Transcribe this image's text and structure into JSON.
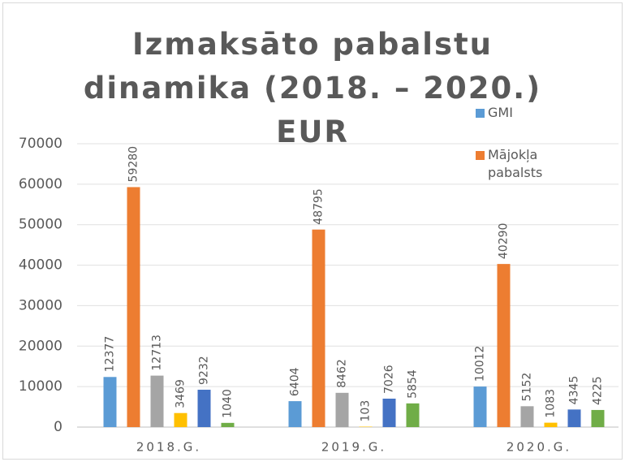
{
  "chart_data": {
    "type": "bar",
    "title": "Izmaksāto pabalstu dinamika (2018. – 2020.) EUR",
    "categories": [
      "2018.G.",
      "2019.G.",
      "2020.G."
    ],
    "series": [
      {
        "name": "GMI",
        "color": "#5b9bd5",
        "values": [
          12377,
          6404,
          10012
        ]
      },
      {
        "name": "Mājokļa pabalsts",
        "color": "#ed7d31",
        "values": [
          59280,
          48795,
          40290
        ]
      },
      {
        "color": "#a5a5a5",
        "values": [
          12713,
          8462,
          5152
        ]
      },
      {
        "color": "#ffc000",
        "values": [
          3469,
          103,
          1083
        ]
      },
      {
        "color": "#4472c4",
        "values": [
          9232,
          7026,
          4345
        ]
      },
      {
        "color": "#70ad47",
        "values": [
          1040,
          5854,
          4225
        ]
      }
    ],
    "ylim": [
      0,
      70000
    ],
    "yticks": [
      0,
      10000,
      20000,
      30000,
      40000,
      50000,
      60000,
      70000
    ],
    "grid": true,
    "legend": "right"
  }
}
